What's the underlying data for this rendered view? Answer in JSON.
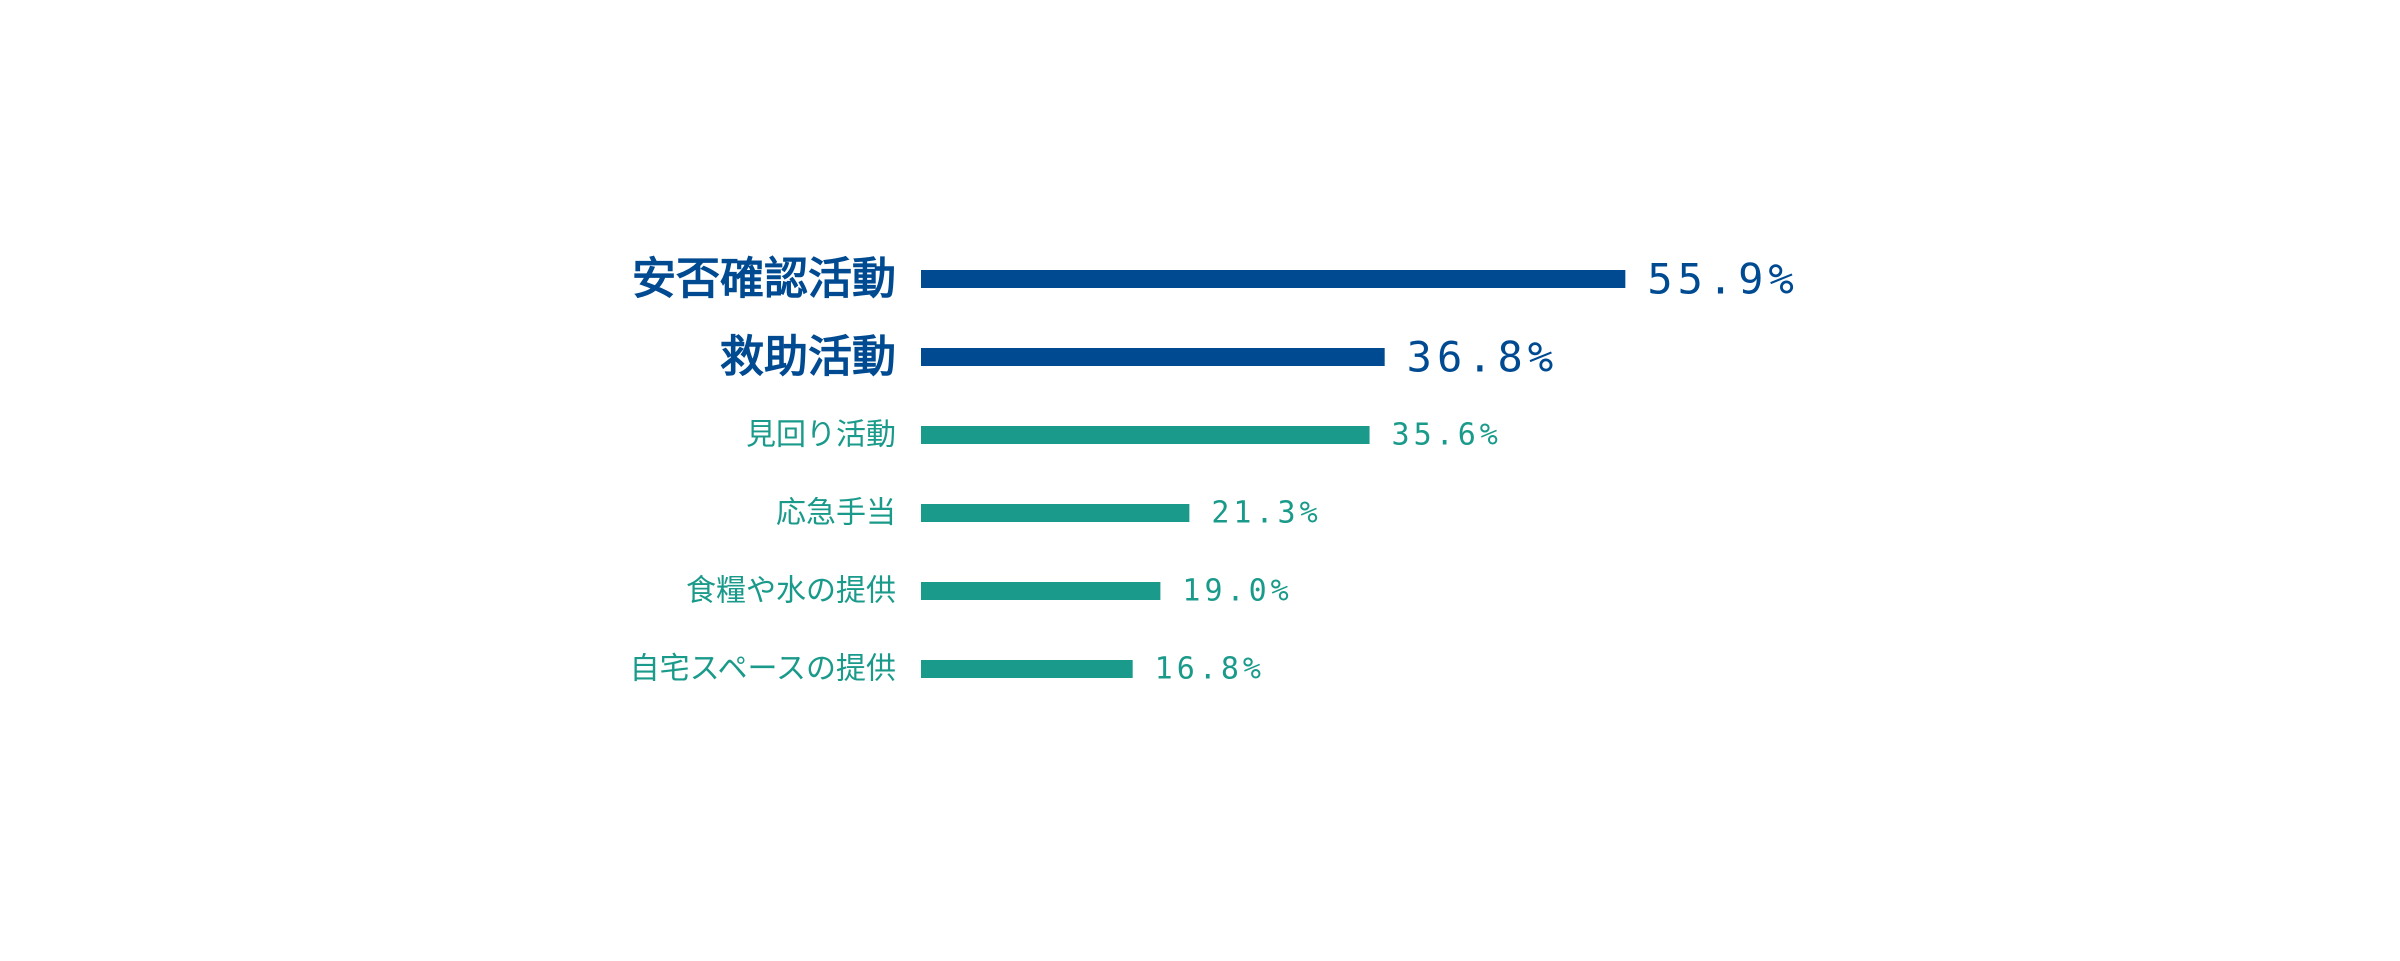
{
  "chart_data": {
    "type": "bar",
    "orientation": "horizontal",
    "categories": [
      "安否確認活動",
      "救助活動",
      "見回り活動",
      "応急手当",
      "食糧や水の提供",
      "自宅スペースの提供"
    ],
    "values": [
      55.9,
      36.8,
      35.6,
      21.3,
      19.0,
      16.8
    ],
    "value_labels": [
      "55.9%",
      "36.8%",
      "35.6%",
      "21.3%",
      "19.0%",
      "16.8%"
    ],
    "highlight_count": 2,
    "colors": {
      "highlight": "#004a91",
      "normal": "#1a9a8a"
    },
    "xlim": [
      0,
      100
    ],
    "grid": false,
    "legend": "none"
  }
}
